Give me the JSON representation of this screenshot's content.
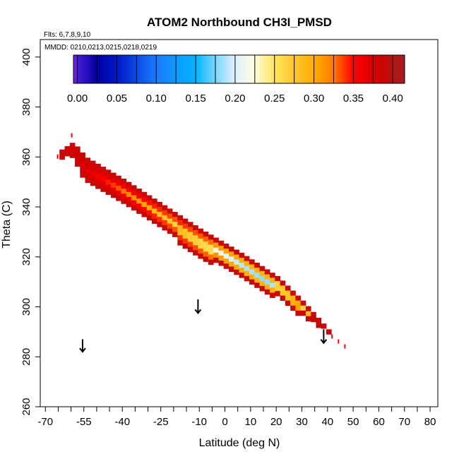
{
  "chart_data": {
    "type": "heatmap",
    "title": "ATOM2 Northbound CH3I_PMSD",
    "annotations": {
      "flights": "Flts: 6,7,8,9,10",
      "dates": "MMDD: 0210,0213,0215,0218,0219"
    },
    "xlabel": "Latitude (deg N)",
    "ylabel": "Theta (C)",
    "xlim": [
      -72,
      83
    ],
    "ylim": [
      260,
      407
    ],
    "x_ticks": [
      -70,
      -55,
      -40,
      -25,
      -10,
      0,
      10,
      20,
      30,
      40,
      50,
      60,
      70,
      80
    ],
    "x_minor_ticks": [
      -65,
      -60,
      -50,
      -45,
      -35,
      -30,
      -20,
      -15,
      -5,
      5,
      15,
      25,
      35,
      45,
      55,
      65,
      75
    ],
    "x_tick_labels": [
      "-70",
      "-55",
      "-40",
      "-25",
      "-10",
      "0",
      "10",
      "20",
      "30",
      "40",
      "50",
      "60",
      "70",
      "80"
    ],
    "y_ticks": [
      260,
      280,
      300,
      320,
      340,
      360,
      380,
      400
    ],
    "y_tick_labels": [
      "260",
      "280",
      "300",
      "320",
      "340",
      "360",
      "380",
      "400"
    ],
    "colorbar": {
      "ticks": [
        0.0,
        0.05,
        0.1,
        0.15,
        0.2,
        0.25,
        0.3,
        0.35,
        0.4
      ],
      "tick_labels": [
        "0.00",
        "0.05",
        "0.10",
        "0.15",
        "0.20",
        "0.25",
        "0.30",
        "0.35",
        "0.40"
      ],
      "range": [
        -0.005,
        0.415
      ],
      "color_stops": [
        {
          "value": -0.005,
          "color": "#7f22ef"
        },
        {
          "value": 0.0,
          "color": "#4a1ad8"
        },
        {
          "value": 0.025,
          "color": "#0000a0"
        },
        {
          "value": 0.05,
          "color": "#0018c8"
        },
        {
          "value": 0.1,
          "color": "#1a7cff"
        },
        {
          "value": 0.15,
          "color": "#00b4ff"
        },
        {
          "value": 0.175,
          "color": "#7cd6ff"
        },
        {
          "value": 0.2,
          "color": "#dff1ff"
        },
        {
          "value": 0.225,
          "color": "#fffde0"
        },
        {
          "value": 0.25,
          "color": "#ffe45c"
        },
        {
          "value": 0.3,
          "color": "#ffac00"
        },
        {
          "value": 0.325,
          "color": "#ff7a00"
        },
        {
          "value": 0.35,
          "color": "#ff0000"
        },
        {
          "value": 0.38,
          "color": "#d40000"
        },
        {
          "value": 0.415,
          "color": "#a41f1f"
        }
      ]
    },
    "band": {
      "lat_start": -64.5,
      "lat_end": 39.5,
      "lat_step": 2,
      "theta_top": [
        {
          "lat": -64.5,
          "theta": 363
        },
        {
          "lat": -60,
          "theta": 366
        },
        {
          "lat": -55,
          "theta": 360
        },
        {
          "lat": -40,
          "theta": 351
        },
        {
          "lat": -25,
          "theta": 341
        },
        {
          "lat": -10,
          "theta": 331
        },
        {
          "lat": 5,
          "theta": 322
        },
        {
          "lat": 20,
          "theta": 312
        },
        {
          "lat": 30,
          "theta": 302
        },
        {
          "lat": 39.5,
          "theta": 291
        }
      ],
      "thickness": [
        {
          "lat": -64.5,
          "dtheta": 3
        },
        {
          "lat": -57,
          "dtheta": 10
        },
        {
          "lat": -45,
          "dtheta": 10
        },
        {
          "lat": -20,
          "dtheta": 11
        },
        {
          "lat": -5,
          "dtheta": 11
        },
        {
          "lat": 10,
          "dtheta": 10
        },
        {
          "lat": 25,
          "dtheta": 8
        },
        {
          "lat": 35,
          "dtheta": 4
        },
        {
          "lat": 39.5,
          "dtheta": 2
        }
      ],
      "mid_value": [
        {
          "lat": -64.5,
          "value": 0.38
        },
        {
          "lat": -55,
          "value": 0.37
        },
        {
          "lat": -45,
          "value": 0.34
        },
        {
          "lat": -35,
          "value": 0.31
        },
        {
          "lat": -25,
          "value": 0.28
        },
        {
          "lat": -15,
          "value": 0.25
        },
        {
          "lat": -5,
          "value": 0.22
        },
        {
          "lat": 5,
          "value": 0.19
        },
        {
          "lat": 15,
          "value": 0.18
        },
        {
          "lat": 22,
          "value": 0.2
        },
        {
          "lat": 30,
          "value": 0.27
        },
        {
          "lat": 35,
          "value": 0.32
        },
        {
          "lat": 39.5,
          "value": 0.35
        }
      ],
      "edge_value": 0.39,
      "edge_cells": 1,
      "theta_cell": 2
    },
    "scatter_cells": [
      {
        "lat": 41.5,
        "theta": 289,
        "value": 0.36
      },
      {
        "lat": 44,
        "theta": 287,
        "value": 0.35
      },
      {
        "lat": 46.5,
        "theta": 285,
        "value": 0.36
      },
      {
        "lat": -60,
        "theta": 369.5,
        "value": 0.36
      },
      {
        "lat": -65.5,
        "theta": 361,
        "value": 0.37
      }
    ],
    "arrows": [
      {
        "lat": -55.5,
        "theta_top": 287,
        "theta_tip": 282
      },
      {
        "lat": -10.5,
        "theta_top": 303,
        "theta_tip": 297.5
      },
      {
        "lat": 38.5,
        "theta_top": 291,
        "theta_tip": 285.5
      }
    ]
  }
}
